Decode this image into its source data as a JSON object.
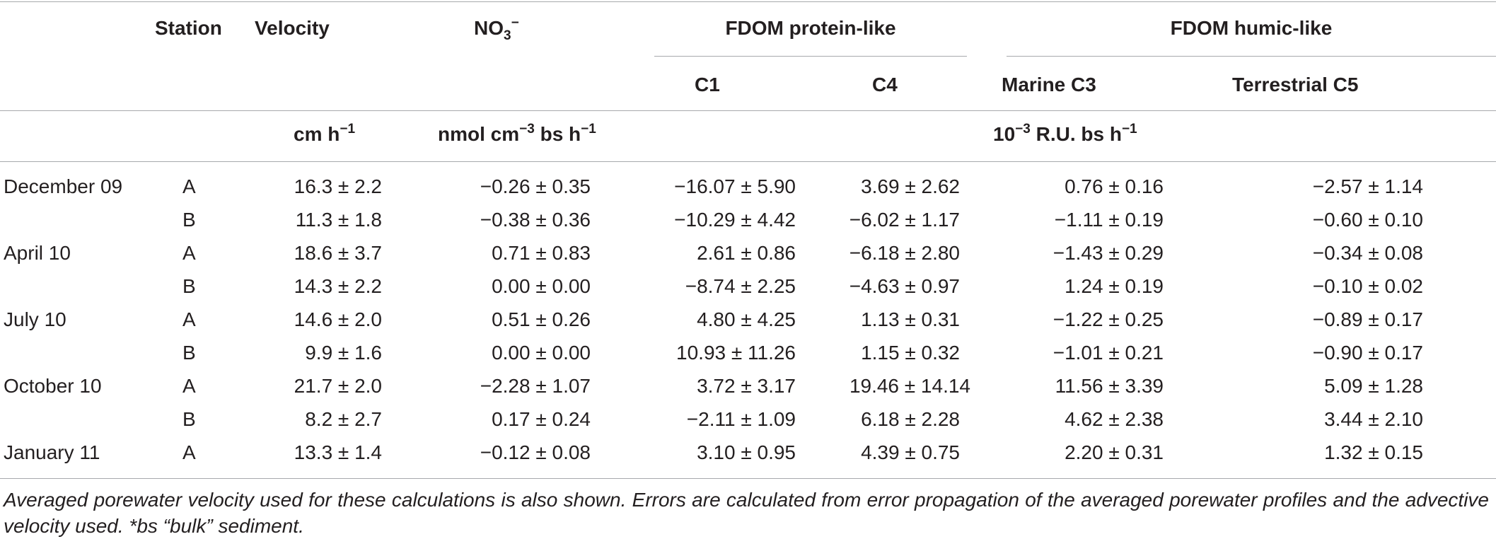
{
  "header": {
    "station": "Station",
    "velocity": "Velocity",
    "no3_base": "NO",
    "no3_sub": "3",
    "no3_sup": "−",
    "protein_group": "FDOM protein-like",
    "humic_group": "FDOM humic-like",
    "c1": "C1",
    "c4": "C4",
    "marine_c3": "Marine C3",
    "terrestrial_c5": "Terrestrial C5"
  },
  "units": {
    "velocity_base": "cm h",
    "velocity_sup": "−1",
    "no3_pre": "nmol cm",
    "no3_sup": "−3",
    "no3_post": " bs h",
    "no3_sup2": "−1",
    "fdom_pre": "10",
    "fdom_sup": "−3",
    "fdom_post": " R.U. bs h",
    "fdom_sup2": "−1"
  },
  "rows": [
    {
      "date": "December 09",
      "station": "A",
      "velocity": "16.3 ± 2.2",
      "no3": "−0.26 ± 0.35",
      "c1": "−16.07 ± 5.90",
      "c4": "3.69 ± 2.62",
      "c3": "0.76 ± 0.16",
      "c5": "−2.57 ± 1.14"
    },
    {
      "date": "",
      "station": "B",
      "velocity": "11.3 ± 1.8",
      "no3": "−0.38 ± 0.36",
      "c1": "−10.29 ± 4.42",
      "c4": "−6.02 ± 1.17",
      "c3": "−1.11 ± 0.19",
      "c5": "−0.60 ± 0.10"
    },
    {
      "date": "April 10",
      "station": "A",
      "velocity": "18.6 ± 3.7",
      "no3": "0.71 ± 0.83",
      "c1": "2.61 ± 0.86",
      "c4": "−6.18 ± 2.80",
      "c3": "−1.43 ± 0.29",
      "c5": "−0.34 ± 0.08"
    },
    {
      "date": "",
      "station": "B",
      "velocity": "14.3 ± 2.2",
      "no3": "0.00 ± 0.00",
      "c1": "−8.74 ± 2.25",
      "c4": "−4.63 ± 0.97",
      "c3": "1.24 ± 0.19",
      "c5": "−0.10 ± 0.02"
    },
    {
      "date": "July 10",
      "station": "A",
      "velocity": "14.6 ± 2.0",
      "no3": "0.51 ± 0.26",
      "c1": "4.80 ± 4.25",
      "c4": "1.13 ± 0.31",
      "c3": "−1.22 ± 0.25",
      "c5": "−0.89 ± 0.17"
    },
    {
      "date": "",
      "station": "B",
      "velocity": "9.9 ± 1.6",
      "no3": "0.00 ± 0.00",
      "c1": "10.93 ± 11.26",
      "c4": "1.15 ± 0.32",
      "c3": "−1.01 ± 0.21",
      "c5": "−0.90 ± 0.17"
    },
    {
      "date": "October 10",
      "station": "A",
      "velocity": "21.7 ± 2.0",
      "no3": "−2.28 ± 1.07",
      "c1": "3.72 ± 3.17",
      "c4": "19.46 ± 14.14",
      "c3": "11.56 ± 3.39",
      "c5": "5.09 ± 1.28"
    },
    {
      "date": "",
      "station": "B",
      "velocity": "8.2 ± 2.7",
      "no3": "0.17 ± 0.24",
      "c1": "−2.11 ± 1.09",
      "c4": "6.18 ± 2.28",
      "c3": "4.62 ± 2.38",
      "c5": "3.44 ± 2.10"
    },
    {
      "date": "January 11",
      "station": "A",
      "velocity": "13.3 ± 1.4",
      "no3": "−0.12 ± 0.08",
      "c1": "3.10 ± 0.95",
      "c4": "4.39 ± 0.75",
      "c3": "2.20 ± 0.31",
      "c5": "1.32 ± 0.15"
    }
  ],
  "caption": "Averaged porewater velocity used for these calculations is also shown. Errors are calculated from error propagation of the averaged porewater profiles and the advective velocity used. *bs “bulk” sediment."
}
